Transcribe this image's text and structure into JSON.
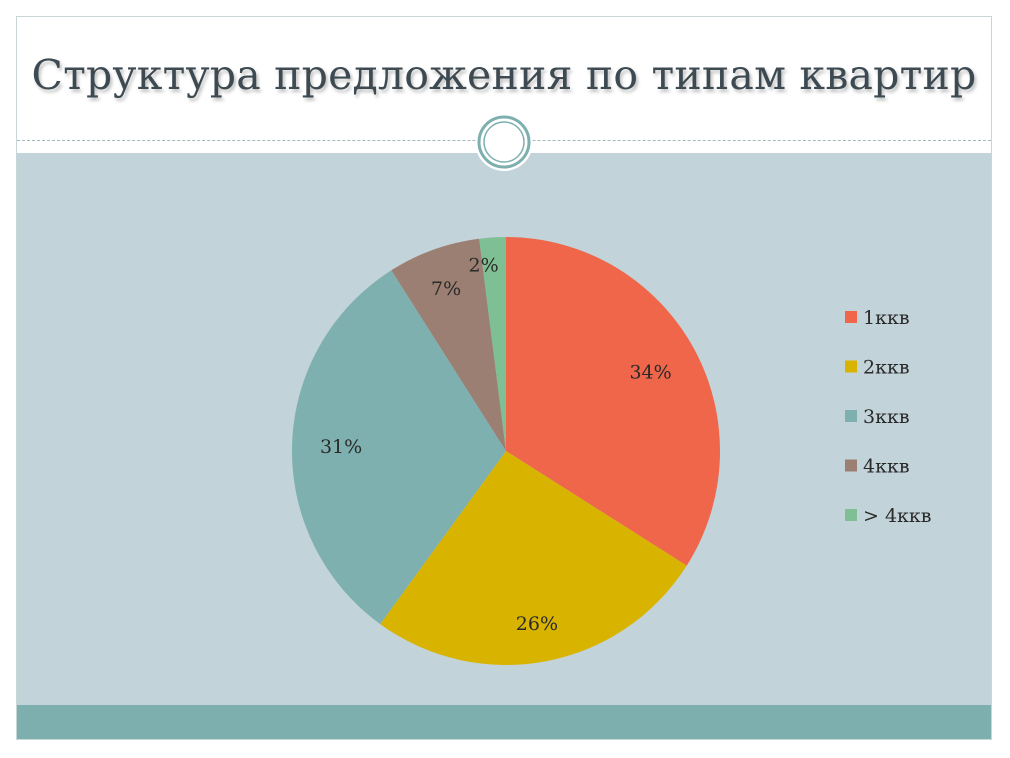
{
  "slide": {
    "title": "Структура предложения по типам квартир"
  },
  "colors": {
    "content_bg": "#c2d3d9",
    "footer_band": "#7eafaf",
    "ornament": "#7eafaf"
  },
  "chart_data": {
    "type": "pie",
    "title": "",
    "legend_position": "right",
    "categories": [
      "1ккв",
      "2ккв",
      "3ккв",
      "4ккв",
      "> 4ккв"
    ],
    "values": [
      34,
      26,
      31,
      7,
      2
    ],
    "labels": [
      "34%",
      "26%",
      "31%",
      "7%",
      "2%"
    ],
    "colors": [
      "#ef664a",
      "#d8b400",
      "#7fb0b0",
      "#9a7f72",
      "#7fbf94"
    ]
  }
}
